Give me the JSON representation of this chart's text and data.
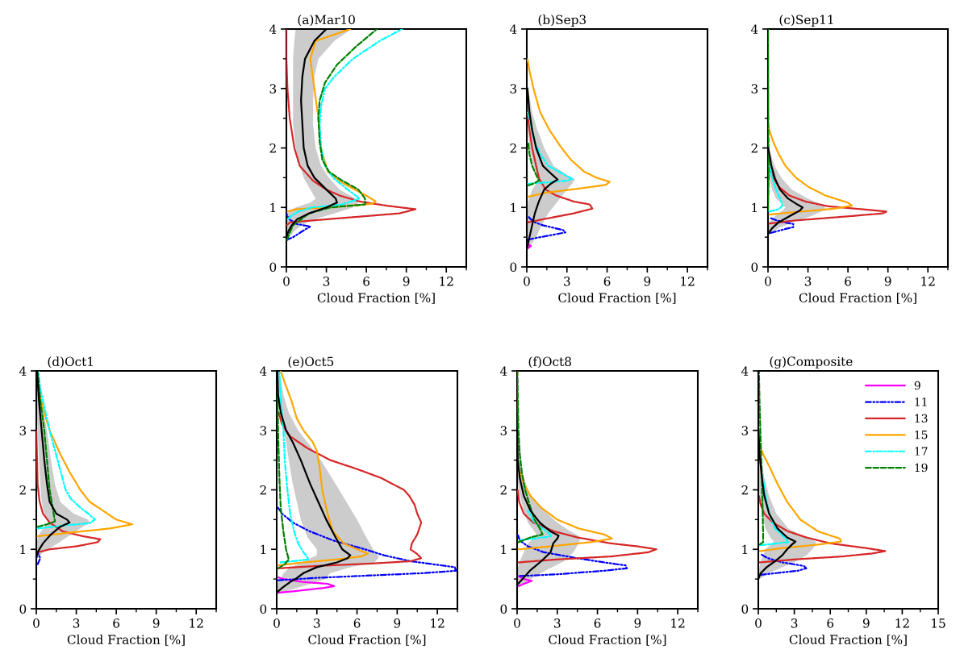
{
  "chart_data": [
    {
      "type": "line",
      "orientation": "horizontal",
      "title": "(a)Mar10",
      "xlabel": "Cloud Fraction [%]",
      "xlim": [
        0,
        13.5
      ],
      "xticks": [
        0,
        3,
        6,
        9,
        12
      ],
      "ylim": [
        0,
        4
      ],
      "yticks": [
        0,
        1,
        2,
        3,
        4
      ],
      "grid": false,
      "legend": false,
      "series": [
        {
          "color": "#0000ff",
          "line_style": "dashdotdot",
          "values": [
            0,
            0.5,
            1.2,
            1.8,
            0.8,
            0.2,
            0
          ],
          "x": [
            0.45,
            0.5,
            0.6,
            0.68,
            0.72,
            0.8,
            0.9
          ]
        },
        {
          "color": "#d62728",
          "line_style": "dotted",
          "values": [
            0,
            0.3,
            3,
            8.5,
            9.7,
            7.5,
            5.5,
            4.0,
            3.0,
            2.0,
            1.0,
            0.6,
            0.25,
            0.08,
            0,
            0
          ],
          "x": [
            0.7,
            0.75,
            0.8,
            0.9,
            0.97,
            1.03,
            1.1,
            1.2,
            1.3,
            1.45,
            1.7,
            2.0,
            2.5,
            3.0,
            3.5,
            4.0
          ]
        },
        {
          "color": "#ffa500",
          "line_style": "dotted",
          "values": [
            0.1,
            0.7,
            3.3,
            6.4,
            6.7,
            6.0,
            4.3,
            3.1,
            2.6,
            2.4,
            2.1,
            1.8,
            2.2,
            4.8
          ],
          "x": [
            0.93,
            0.97,
            1.0,
            1.06,
            1.1,
            1.2,
            1.4,
            1.6,
            2.0,
            2.5,
            3.0,
            3.5,
            3.8,
            4.0
          ]
        },
        {
          "color": "#00ffff",
          "line_style": "dashdot",
          "values": [
            0.1,
            0.3,
            0.9,
            1.9,
            4.2,
            5.5,
            4.6,
            3.5,
            2.9,
            2.6,
            2.5,
            2.6,
            2.9,
            3.6,
            5.0,
            7.0,
            8.7
          ],
          "x": [
            0.8,
            0.85,
            0.93,
            1.0,
            1.05,
            1.15,
            1.3,
            1.5,
            1.7,
            2.0,
            2.4,
            2.7,
            3.0,
            3.2,
            3.5,
            3.8,
            4.0
          ]
        },
        {
          "color": "#008000",
          "line_style": "dashed",
          "values": [
            0.05,
            0.2,
            0.5,
            1.1,
            1.7,
            3.3,
            5.9,
            5.9,
            5.4,
            4.2,
            3.2,
            2.7,
            2.5,
            2.4,
            2.5,
            2.9,
            3.8,
            5.2,
            6.8
          ],
          "x": [
            0.45,
            0.55,
            0.7,
            0.8,
            0.9,
            1.0,
            1.05,
            1.15,
            1.3,
            1.45,
            1.6,
            1.8,
            2.1,
            2.5,
            2.8,
            3.1,
            3.4,
            3.7,
            4.0
          ]
        },
        {
          "color": "#000000",
          "line_style": "solid",
          "values": [
            0,
            0.15,
            0.4,
            0.8,
            1.7,
            3.0,
            3.8,
            3.7,
            3.0,
            2.1,
            1.6,
            1.3,
            1.2,
            1.1,
            1.2,
            1.4,
            2.1,
            3.0
          ],
          "x": [
            0.5,
            0.6,
            0.7,
            0.8,
            0.9,
            1.0,
            1.08,
            1.15,
            1.3,
            1.5,
            1.7,
            2.0,
            2.4,
            2.8,
            3.2,
            3.5,
            3.8,
            4.0
          ],
          "lower": [
            0,
            0,
            0,
            0,
            0.1,
            0.7,
            1.8,
            2.2,
            1.8,
            1.3,
            1.0,
            0.7,
            0.5,
            0.5,
            0.5,
            0.5,
            0.6,
            0.7
          ],
          "upper": [
            0.2,
            0.6,
            1.1,
            2.1,
            3.6,
            5.0,
            5.4,
            5.2,
            4.0,
            3.2,
            2.6,
            2.2,
            2.0,
            2.0,
            2.1,
            2.4,
            3.6,
            4.9
          ]
        }
      ]
    },
    {
      "type": "line",
      "orientation": "horizontal",
      "title": "(b)Sep3",
      "xlabel": "Cloud Fraction [%]",
      "xlim": [
        0,
        13.5
      ],
      "xticks": [
        0,
        3,
        6,
        9,
        12
      ],
      "ylim": [
        0,
        4
      ],
      "yticks": [
        0,
        1,
        2,
        3,
        4
      ],
      "grid": false,
      "legend": false,
      "series": [
        {
          "color": "#ff00ff",
          "line_style": "dotted",
          "values": [
            0,
            0.3,
            0
          ],
          "x": [
            0.3,
            0.35,
            0.4
          ]
        },
        {
          "color": "#0000ff",
          "line_style": "dashdotdot",
          "values": [
            0.1,
            1.0,
            2.2,
            2.9,
            2.7,
            1.2,
            0.6,
            0.3,
            0.1
          ],
          "x": [
            0.46,
            0.5,
            0.55,
            0.58,
            0.62,
            0.7,
            0.75,
            0.8,
            0.85
          ]
        },
        {
          "color": "#d62728",
          "line_style": "dotted",
          "values": [
            0.1,
            1.2,
            3.5,
            4.9,
            4.7,
            3.5,
            2.2,
            1.4,
            0.9,
            0.6,
            0.4,
            0.2,
            0.05
          ],
          "x": [
            0.75,
            0.8,
            0.9,
            0.98,
            1.05,
            1.1,
            1.2,
            1.3,
            1.5,
            1.8,
            2.0,
            2.3,
            2.6
          ]
        },
        {
          "color": "#ffa500",
          "line_style": "dotted",
          "values": [
            0.1,
            1.5,
            4,
            5.9,
            6.2,
            5.2,
            4.3,
            3.3,
            2.6,
            1.7,
            1.0,
            0.5,
            0.2,
            0.05
          ],
          "x": [
            1.18,
            1.25,
            1.32,
            1.38,
            1.43,
            1.5,
            1.6,
            1.8,
            2.0,
            2.3,
            2.6,
            3.0,
            3.3,
            3.5
          ]
        },
        {
          "color": "#00ffff",
          "line_style": "dashdot",
          "values": [
            0.1,
            1.5,
            3.0,
            3.4,
            2.8,
            1.6,
            1.0,
            0.6,
            0.3,
            0.1
          ],
          "x": [
            1.4,
            1.42,
            1.45,
            1.48,
            1.55,
            1.7,
            1.9,
            2.1,
            2.4,
            2.6
          ]
        },
        {
          "color": "#008000",
          "line_style": "dashed",
          "values": [
            0.1,
            0.5,
            0.9,
            0.7,
            0.4,
            0.2,
            0.1
          ],
          "x": [
            1.37,
            1.4,
            1.45,
            1.55,
            1.7,
            1.9,
            2.1
          ]
        },
        {
          "color": "#000000",
          "line_style": "solid",
          "values": [
            0,
            0.2,
            0.4,
            0.6,
            0.9,
            1.3,
            1.8,
            2.3,
            1.9,
            1.2,
            0.7,
            0.4,
            0.2,
            0.05
          ],
          "x": [
            0.3,
            0.5,
            0.7,
            0.9,
            1.1,
            1.3,
            1.4,
            1.47,
            1.55,
            1.7,
            2.0,
            2.3,
            2.6,
            3.0
          ],
          "lower": [
            0,
            0,
            0,
            0,
            0.1,
            0.4,
            0.7,
            1.1,
            0.8,
            0.5,
            0.2,
            0.1,
            0,
            0
          ],
          "upper": [
            0.1,
            0.7,
            1.1,
            1.6,
            2.3,
            3.0,
            3.4,
            3.6,
            3.0,
            2.0,
            1.3,
            0.8,
            0.4,
            0.1
          ]
        }
      ]
    },
    {
      "type": "line",
      "orientation": "horizontal",
      "title": "(c)Sep11",
      "xlabel": "Cloud Fraction [%]",
      "xlim": [
        0,
        13.5
      ],
      "xticks": [
        0,
        3,
        6,
        9,
        12
      ],
      "ylim": [
        0,
        4
      ],
      "yticks": [
        0,
        1,
        2,
        3,
        4
      ],
      "grid": false,
      "legend": false,
      "series": [
        {
          "color": "#0000ff",
          "line_style": "dashdotdot",
          "values": [
            0.2,
            1.0,
            1.9,
            1.9,
            0.8,
            0.2
          ],
          "x": [
            0.57,
            0.62,
            0.67,
            0.72,
            0.77,
            0.82
          ]
        },
        {
          "color": "#d62728",
          "line_style": "dotted",
          "values": [
            0.1,
            2,
            6,
            8.6,
            8.9,
            7,
            4.5,
            2.8,
            1.6,
            0.8,
            0.4,
            0.1,
            0
          ],
          "x": [
            0.73,
            0.78,
            0.85,
            0.9,
            0.93,
            0.97,
            1.02,
            1.1,
            1.2,
            1.35,
            1.5,
            1.65,
            1.75
          ]
        },
        {
          "color": "#ffa500",
          "line_style": "dotted",
          "values": [
            0.1,
            2.5,
            5,
            6.3,
            6.0,
            4.3,
            3.0,
            2.1,
            1.3,
            0.8,
            0.4,
            0.1,
            0
          ],
          "x": [
            0.88,
            0.93,
            0.98,
            1.03,
            1.08,
            1.2,
            1.35,
            1.5,
            1.7,
            1.9,
            2.1,
            2.3,
            2.4
          ]
        },
        {
          "color": "#00ffff",
          "line_style": "dashdot",
          "values": [
            0.1,
            0.8,
            1.1,
            0.9,
            0.6,
            0.3,
            0.1
          ],
          "x": [
            0.93,
            0.97,
            1.03,
            1.15,
            1.3,
            1.5,
            1.7
          ]
        },
        {
          "color": "#008000",
          "line_style": "dashed",
          "values": [
            0,
            0.05,
            0.02,
            0
          ],
          "x": [
            0.95,
            1.5,
            2.5,
            4.0
          ]
        },
        {
          "color": "#000000",
          "line_style": "solid",
          "values": [
            0,
            0.3,
            0.8,
            1.6,
            2.4,
            2.6,
            2.2,
            1.5,
            0.9,
            0.5,
            0.25,
            0.1,
            0
          ],
          "x": [
            0.55,
            0.65,
            0.75,
            0.85,
            0.95,
            1.0,
            1.05,
            1.15,
            1.3,
            1.5,
            1.7,
            1.9,
            2.0
          ],
          "lower": [
            0,
            0,
            0.1,
            0.5,
            1.1,
            1.3,
            1.1,
            0.6,
            0.3,
            0.1,
            0,
            0,
            0
          ],
          "upper": [
            0.1,
            0.8,
            1.8,
            3.2,
            4.2,
            4.3,
            4.0,
            3.0,
            1.8,
            1.0,
            0.5,
            0.2,
            0.1
          ]
        }
      ]
    },
    {
      "type": "line",
      "orientation": "horizontal",
      "title": "(d)Oct1",
      "xlabel": "Cloud Fraction [%]",
      "xlim": [
        0,
        13.5
      ],
      "xticks": [
        0,
        3,
        6,
        9,
        12
      ],
      "ylim": [
        0,
        4
      ],
      "yticks": [
        0,
        1,
        2,
        3,
        4
      ],
      "grid": false,
      "legend": false,
      "series": [
        {
          "color": "#0000ff",
          "line_style": "dashdotdot",
          "values": [
            0.1,
            0.3,
            0.1
          ],
          "x": [
            0.75,
            0.85,
            0.95
          ]
        },
        {
          "color": "#d62728",
          "line_style": "dotted",
          "values": [
            0.1,
            1,
            3,
            4.6,
            4.8,
            3.5,
            2.0,
            1.0,
            0.5,
            0.25,
            0.1,
            0.05,
            0
          ],
          "x": [
            0.95,
            1.0,
            1.05,
            1.12,
            1.17,
            1.22,
            1.3,
            1.45,
            1.6,
            1.8,
            2.1,
            2.6,
            3.0
          ]
        },
        {
          "color": "#ffa500",
          "line_style": "dotted",
          "values": [
            0.1,
            2.5,
            5.5,
            7.2,
            6.0,
            5.0,
            4.0,
            3.3,
            2.5,
            1.8,
            1.0,
            0.6,
            0.25,
            0.05
          ],
          "x": [
            1.22,
            1.28,
            1.35,
            1.42,
            1.5,
            1.65,
            1.8,
            2.0,
            2.3,
            2.6,
            3.0,
            3.3,
            3.6,
            4.0
          ]
        },
        {
          "color": "#00ffff",
          "line_style": "dashdot",
          "values": [
            0.1,
            2,
            4.0,
            4.4,
            3.9,
            3.3,
            2.6,
            2.2,
            1.6,
            1.0,
            0.7,
            0.5,
            0.3,
            0.15
          ],
          "x": [
            1.35,
            1.4,
            1.44,
            1.5,
            1.6,
            1.7,
            1.85,
            2.0,
            2.5,
            3.0,
            3.3,
            3.5,
            3.7,
            4.0
          ]
        },
        {
          "color": "#008000",
          "line_style": "dashed",
          "values": [
            0.1,
            0.8,
            1.4,
            1.3,
            1.0,
            0.8,
            0.6,
            0.3,
            0.1
          ],
          "x": [
            1.38,
            1.42,
            1.47,
            1.6,
            2.0,
            2.5,
            3.0,
            3.5,
            4.0
          ]
        },
        {
          "color": "#000000",
          "line_style": "solid",
          "values": [
            0,
            0.1,
            0.5,
            1.1,
            1.8,
            2.5,
            2.3,
            1.5,
            1.0,
            0.8,
            0.6,
            0.4,
            0.2,
            0.05
          ],
          "x": [
            0.85,
            0.95,
            1.1,
            1.25,
            1.38,
            1.45,
            1.5,
            1.6,
            1.8,
            2.1,
            2.5,
            3.0,
            3.5,
            4.0
          ],
          "lower": [
            0,
            0,
            0,
            0.2,
            0.6,
            0.9,
            0.8,
            0.6,
            0.4,
            0.3,
            0.2,
            0.1,
            0,
            0
          ],
          "upper": [
            0.1,
            0.5,
            1.6,
            2.6,
            3.5,
            4.0,
            3.9,
            2.8,
            1.8,
            1.4,
            1.1,
            0.8,
            0.4,
            0.1
          ]
        }
      ]
    },
    {
      "type": "line",
      "orientation": "horizontal",
      "title": "(e)Oct5",
      "xlabel": "Cloud Fraction [%]",
      "xlim": [
        0,
        13.5
      ],
      "xticks": [
        0,
        3,
        6,
        9,
        12
      ],
      "ylim": [
        0,
        4
      ],
      "yticks": [
        0,
        1,
        2,
        3,
        4
      ],
      "grid": false,
      "legend": false,
      "series": [
        {
          "color": "#ff00ff",
          "line_style": "dotted",
          "values": [
            0.1,
            1.5,
            3.5,
            4.3,
            3.8,
            2,
            0.5,
            0.1
          ],
          "x": [
            0.27,
            0.3,
            0.35,
            0.38,
            0.42,
            0.45,
            0.5,
            0.53
          ]
        },
        {
          "color": "#0000ff",
          "line_style": "dashdotdot",
          "values": [
            0.1,
            3,
            7,
            11,
            13.4,
            13.3,
            10.0,
            8.0,
            6.6,
            4.2,
            2.5,
            1.2,
            0.4,
            0.1
          ],
          "x": [
            0.48,
            0.52,
            0.56,
            0.6,
            0.64,
            0.7,
            0.8,
            0.9,
            1.0,
            1.15,
            1.3,
            1.45,
            1.6,
            1.7
          ]
        },
        {
          "color": "#d62728",
          "line_style": "dotted",
          "values": [
            0.1,
            3,
            7,
            10,
            10.8,
            10.5,
            10.0,
            10.1,
            10.5,
            10.8,
            10.5,
            10.3,
            9.9,
            9.5,
            7.8,
            6.0,
            4.0,
            2.3,
            1.0,
            0.4,
            0.15
          ],
          "x": [
            0.68,
            0.72,
            0.76,
            0.8,
            0.85,
            0.92,
            1.0,
            1.1,
            1.25,
            1.45,
            1.6,
            1.75,
            1.9,
            2.0,
            2.2,
            2.35,
            2.5,
            2.7,
            2.9,
            3.1,
            3.3
          ]
        },
        {
          "color": "#ffa500",
          "line_style": "dotted",
          "values": [
            0.1,
            2,
            4.5,
            6.3,
            6.8,
            6.0,
            5.0,
            4.2,
            3.8,
            3.4,
            3.2,
            3.0,
            2.7,
            2.0,
            1.5,
            1.1,
            0.6,
            0.3
          ],
          "x": [
            0.73,
            0.78,
            0.83,
            0.88,
            0.93,
            1.0,
            1.1,
            1.3,
            1.6,
            2.0,
            2.4,
            2.65,
            2.8,
            3.0,
            3.2,
            3.5,
            3.8,
            4.0
          ]
        },
        {
          "color": "#00ffff",
          "line_style": "dashdot",
          "values": [
            0.3,
            2.4,
            2.0,
            1.6,
            1.3,
            1.0,
            0.8,
            0.6,
            0.5,
            0.3,
            0.2
          ],
          "x": [
            0.78,
            0.83,
            0.95,
            1.1,
            1.3,
            1.6,
            2.0,
            2.5,
            3.0,
            3.5,
            4.0
          ]
        },
        {
          "color": "#008000",
          "line_style": "dashed",
          "values": [
            0.1,
            0.6,
            0.9,
            0.7,
            0.5,
            0.3,
            0.2,
            0.1,
            0.05
          ],
          "x": [
            0.68,
            0.75,
            0.83,
            1.0,
            1.3,
            1.7,
            2.2,
            3.0,
            4.0
          ]
        },
        {
          "color": "#000000",
          "line_style": "solid",
          "values": [
            0,
            0.4,
            1.0,
            1.4,
            2.0,
            3.0,
            4.5,
            5.3,
            5.5,
            4.9,
            4.4,
            3.7,
            3.1,
            2.5,
            1.8,
            1.2,
            0.7,
            0.3,
            0.1,
            0.05
          ],
          "x": [
            0.27,
            0.35,
            0.45,
            0.5,
            0.6,
            0.7,
            0.78,
            0.85,
            0.9,
            1.0,
            1.2,
            1.5,
            1.8,
            2.1,
            2.5,
            2.8,
            3.0,
            3.3,
            3.6,
            4.0
          ],
          "lower": [
            0,
            0,
            0.1,
            0.3,
            0.5,
            1.0,
            2.0,
            2.5,
            3.0,
            3.0,
            2.3,
            1.8,
            1.5,
            1.2,
            0.9,
            0.7,
            0.5,
            0.3,
            0.1,
            0
          ],
          "upper": [
            0.3,
            1.5,
            3.0,
            3.6,
            4.0,
            5.5,
            7.3,
            7.6,
            7.6,
            7.2,
            6.7,
            6.0,
            5.2,
            4.4,
            3.3,
            2.3,
            1.6,
            0.9,
            0.5,
            0.2
          ]
        }
      ]
    },
    {
      "type": "line",
      "orientation": "horizontal",
      "title": "(f)Oct8",
      "xlabel": "Cloud Fraction [%]",
      "xlim": [
        0,
        13.5
      ],
      "xticks": [
        0,
        3,
        6,
        9,
        12
      ],
      "ylim": [
        0,
        4
      ],
      "yticks": [
        0,
        1,
        2,
        3,
        4
      ],
      "grid": false,
      "legend": false,
      "series": [
        {
          "color": "#ff00ff",
          "line_style": "dotted",
          "values": [
            0.1,
            0.5,
            1.1,
            0.5,
            0.1
          ],
          "x": [
            0.38,
            0.42,
            0.47,
            0.5,
            0.55
          ]
        },
        {
          "color": "#0000ff",
          "line_style": "dashdotdot",
          "values": [
            0.2,
            3,
            6.5,
            8.2,
            8.1,
            6.5,
            4.5,
            2.0,
            0.8,
            0.2,
            0.05
          ],
          "x": [
            0.55,
            0.58,
            0.64,
            0.68,
            0.73,
            0.78,
            0.85,
            0.95,
            1.05,
            1.15,
            1.25
          ]
        },
        {
          "color": "#d62728",
          "line_style": "dotted",
          "values": [
            0.1,
            3,
            7,
            9.8,
            10.4,
            9.0,
            7,
            4.5,
            2.8,
            1.2,
            0.5,
            0.15,
            0.05
          ],
          "x": [
            0.78,
            0.83,
            0.88,
            0.95,
            1.0,
            1.05,
            1.1,
            1.2,
            1.3,
            1.45,
            1.6,
            1.8,
            2.0
          ]
        },
        {
          "color": "#ffa500",
          "line_style": "dotted",
          "values": [
            0.1,
            2.5,
            5.5,
            7.1,
            6.5,
            4.6,
            3.0,
            1.8,
            1.0,
            0.5,
            0.2
          ],
          "x": [
            1.0,
            1.05,
            1.12,
            1.18,
            1.25,
            1.35,
            1.5,
            1.7,
            1.9,
            2.1,
            2.3
          ]
        },
        {
          "color": "#00ffff",
          "line_style": "dashdot",
          "values": [
            0.2,
            2.6,
            2.2,
            1.3,
            0.8
          ],
          "x": [
            1.15,
            1.22,
            1.3,
            1.45,
            1.65
          ]
        },
        {
          "color": "#008000",
          "line_style": "dashed",
          "values": [
            0.1,
            1.0,
            1.9,
            1.7,
            1.3,
            1.0,
            0.6,
            0.35,
            0.2,
            0.1,
            0.02
          ],
          "x": [
            1.12,
            1.2,
            1.25,
            1.35,
            1.5,
            1.7,
            2.0,
            2.3,
            2.6,
            3.0,
            4.0
          ]
        },
        {
          "color": "#000000",
          "line_style": "solid",
          "values": [
            0,
            0.4,
            1.0,
            1.8,
            2.5,
            2.7,
            3.0,
            3.1,
            2.5,
            1.7,
            1.0,
            0.5,
            0.2,
            0.05,
            0
          ],
          "x": [
            0.4,
            0.5,
            0.65,
            0.8,
            0.95,
            1.1,
            1.18,
            1.23,
            1.3,
            1.45,
            1.65,
            1.9,
            2.2,
            2.5,
            3.0
          ],
          "lower": [
            0,
            0,
            0,
            0.2,
            0.5,
            0.8,
            1.2,
            1.5,
            1.3,
            0.8,
            0.5,
            0.2,
            0,
            0,
            0
          ],
          "upper": [
            0.2,
            1.0,
            2.2,
            3.5,
            4.2,
            4.6,
            4.7,
            4.6,
            4.0,
            3.0,
            2.0,
            1.0,
            0.5,
            0.2,
            0.05
          ]
        }
      ]
    },
    {
      "type": "line",
      "orientation": "horizontal",
      "title": "(g)Composite",
      "xlabel": "Cloud Fraction [%]",
      "xlim": [
        0,
        15
      ],
      "xticks": [
        0,
        3,
        6,
        9,
        12,
        15
      ],
      "ylim": [
        0,
        4
      ],
      "yticks": [
        0,
        1,
        2,
        3,
        4
      ],
      "grid": false,
      "legend": "top right",
      "series": [
        {
          "name": "9",
          "color": "#ff00ff",
          "line_style": "dotted"
        },
        {
          "name": "11",
          "color": "#0000ff",
          "line_style": "dashdotdot",
          "values": [
            0.2,
            1.5,
            3.3,
            4.0,
            3.8,
            2.0,
            0.8,
            0.2
          ],
          "x": [
            0.57,
            0.6,
            0.64,
            0.68,
            0.72,
            0.78,
            0.85,
            0.92
          ]
        },
        {
          "name": "13",
          "color": "#d62728",
          "line_style": "dotted",
          "values": [
            0.1,
            3,
            7,
            9.5,
            10.6,
            9,
            6,
            4,
            2.5,
            1.2,
            0.5,
            0.2,
            0.05
          ],
          "x": [
            0.78,
            0.83,
            0.88,
            0.93,
            0.97,
            1.02,
            1.1,
            1.2,
            1.3,
            1.45,
            1.6,
            1.75,
            1.9
          ]
        },
        {
          "name": "15",
          "color": "#ffa500",
          "line_style": "dotted",
          "values": [
            0.1,
            2,
            5,
            6.9,
            6.8,
            5,
            3.5,
            2.4,
            1.6,
            0.9,
            0.4,
            0.2
          ],
          "x": [
            0.97,
            1.02,
            1.08,
            1.13,
            1.18,
            1.3,
            1.5,
            1.8,
            2.1,
            2.4,
            2.6,
            2.7
          ]
        },
        {
          "name": "17",
          "color": "#00ffff",
          "line_style": "dashdot",
          "values": [
            0.2,
            2.5,
            2.2,
            1.4,
            0.9,
            0.6,
            0.4
          ],
          "x": [
            1.07,
            1.12,
            1.2,
            1.35,
            1.6,
            1.9,
            2.2
          ]
        },
        {
          "name": "19",
          "color": "#008000",
          "line_style": "dashed",
          "values": [
            0.1,
            0.4,
            0.4,
            0.35,
            0.3,
            0.2,
            0.1,
            0.05
          ],
          "x": [
            1.08,
            1.12,
            1.3,
            1.7,
            2.2,
            2.8,
            3.5,
            4.0
          ]
        },
        {
          "color": "#000000",
          "line_style": "solid",
          "values": [
            0,
            0.2,
            0.7,
            1.4,
            2.0,
            2.4,
            2.8,
            3.1,
            2.4,
            1.6,
            0.9,
            0.5,
            0.3,
            0.1,
            0.02
          ],
          "x": [
            0.5,
            0.6,
            0.7,
            0.8,
            0.9,
            1.0,
            1.08,
            1.13,
            1.2,
            1.35,
            1.6,
            1.9,
            2.2,
            2.6,
            3.0
          ],
          "lower": [
            0,
            0,
            0.1,
            0.2,
            0.4,
            0.6,
            1.0,
            1.3,
            1.0,
            0.6,
            0.3,
            0.1,
            0,
            0,
            0
          ],
          "upper": [
            0.1,
            0.9,
            2.0,
            3.2,
            4.0,
            4.5,
            4.8,
            4.8,
            4.0,
            2.5,
            1.5,
            0.9,
            0.5,
            0.2,
            0.05
          ]
        }
      ]
    }
  ]
}
